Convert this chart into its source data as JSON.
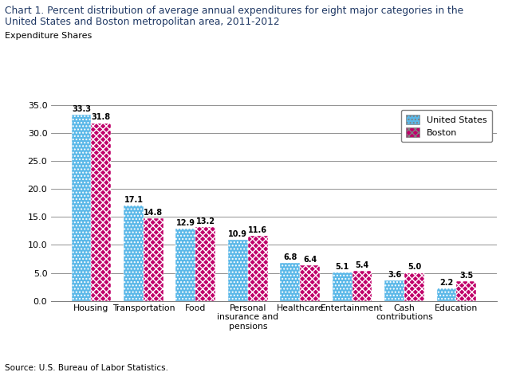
{
  "title_line1": "Chart 1. Percent distribution of average annual expenditures for eight major categories in the",
  "title_line2": "United States and Boston metropolitan area, 2011-2012",
  "ylabel": "Expenditure Shares",
  "categories": [
    "Housing",
    "Transportation",
    "Food",
    "Personal\ninsurance and\npensions",
    "Healthcare",
    "Entertainment",
    "Cash\ncontributions",
    "Education"
  ],
  "us_values": [
    33.3,
    17.1,
    12.9,
    10.9,
    6.8,
    5.1,
    3.6,
    2.2
  ],
  "boston_values": [
    31.8,
    14.8,
    13.2,
    11.6,
    6.4,
    5.4,
    5.0,
    3.5
  ],
  "us_color": "#5BB8E8",
  "boston_color": "#C0006A",
  "us_hatch": "....",
  "boston_hatch": "xxxx",
  "us_label": "United States",
  "boston_label": "Boston",
  "ylim": [
    0,
    35.0
  ],
  "yticks": [
    0.0,
    5.0,
    10.0,
    15.0,
    20.0,
    25.0,
    30.0,
    35.0
  ],
  "source": "Source: U.S. Bureau of Labor Statistics.",
  "title_color": "#1F3864",
  "bar_width": 0.38
}
